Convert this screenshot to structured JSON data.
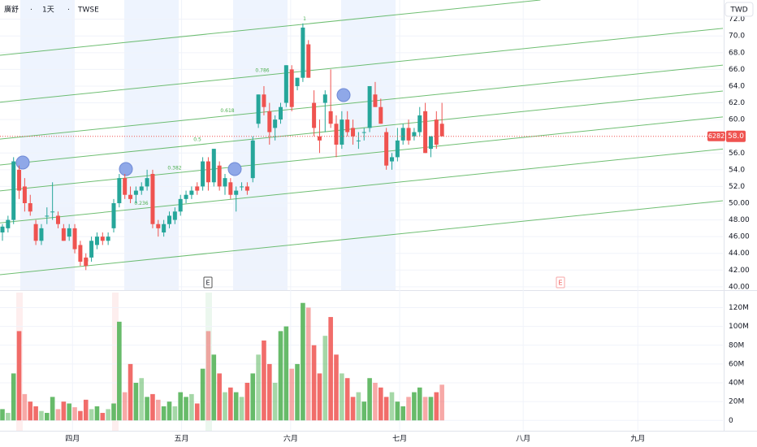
{
  "header": {
    "symbol": "廣舒",
    "interval": "1天",
    "exchange": "TWSE",
    "separator": "·"
  },
  "currency": "TWD",
  "chart_data": [
    {
      "type": "candlestick",
      "open": [
        46.5,
        47,
        48,
        54,
        52,
        50,
        47.5,
        45.5,
        48.5,
        49,
        48.5,
        47,
        46,
        47,
        45,
        43.5,
        43.5,
        45,
        46,
        45.5,
        47,
        50,
        53,
        51,
        51,
        51.5,
        52,
        53.5,
        47.5,
        46.5,
        47.5,
        48,
        49,
        50.5,
        51,
        52,
        52,
        55,
        52.5,
        54.5,
        52,
        52.5,
        51,
        52,
        52,
        53,
        59.5,
        63,
        61,
        59,
        60,
        62,
        66,
        64,
        65,
        69,
        62,
        58,
        62,
        61,
        59.5,
        57,
        60,
        59,
        57.5,
        58.5,
        59,
        63,
        61.5,
        58.5,
        55,
        55.5,
        57.5,
        59,
        58,
        58.5,
        61,
        56.5,
        60,
        59.5
      ],
      "high": [
        47.5,
        48.5,
        55.5,
        54.5,
        53,
        51,
        48,
        47.5,
        49.5,
        52.5,
        49,
        47.5,
        47.5,
        47.5,
        45.5,
        44,
        46,
        46.5,
        46.5,
        46.5,
        50.5,
        53.5,
        53.5,
        52,
        52,
        52.5,
        54,
        54,
        48,
        48,
        49,
        49.5,
        51,
        51.5,
        52,
        52.5,
        55.5,
        55.5,
        56.5,
        55,
        53.5,
        53,
        52,
        52.5,
        52.5,
        58,
        63,
        64,
        62,
        60.5,
        62,
        66.5,
        66.5,
        65,
        71.5,
        69.5,
        63.5,
        60,
        63.5,
        66,
        60.5,
        61,
        61,
        60,
        58.5,
        59,
        64,
        64.5,
        62.5,
        59,
        56,
        59,
        59.5,
        60,
        59,
        61.5,
        62,
        58,
        61,
        62
      ],
      "low": [
        45.5,
        46.5,
        47.5,
        50.5,
        49,
        48.5,
        45,
        45,
        47.5,
        48,
        47,
        45.5,
        45.5,
        44,
        42.5,
        42,
        43,
        44.5,
        45,
        45,
        46.5,
        49.5,
        50.5,
        50,
        50,
        51,
        51.5,
        47,
        46,
        46,
        47,
        47.5,
        48.5,
        50,
        50.5,
        51,
        51.5,
        51.5,
        52,
        51.5,
        51,
        50.5,
        49,
        51.5,
        51,
        52.5,
        59,
        60.5,
        57,
        57.5,
        59.5,
        61.5,
        61,
        63.5,
        64.5,
        65,
        58,
        56,
        58.5,
        59,
        55.5,
        56.5,
        58,
        57,
        56.5,
        57.5,
        58.5,
        61.5,
        59.5,
        54,
        54,
        55,
        57,
        57,
        57.5,
        58,
        56,
        55.5,
        56.5,
        58
      ],
      "close": [
        47.2,
        48,
        55,
        51.5,
        50,
        49,
        45.5,
        47,
        48.5,
        49,
        47.5,
        45.5,
        47,
        44.5,
        43,
        42.5,
        45.5,
        46,
        45.5,
        46,
        50,
        53,
        51,
        50.5,
        51.5,
        52,
        53,
        47.5,
        47,
        47.5,
        48.5,
        49,
        50.5,
        51,
        51.5,
        51.5,
        55,
        52.5,
        56.5,
        52,
        53,
        51,
        51.5,
        52,
        51.5,
        57.5,
        63,
        61.5,
        58.5,
        60,
        61.5,
        66.5,
        61.5,
        65,
        71,
        65,
        59,
        57.5,
        63,
        59.5,
        57,
        60,
        58.5,
        58,
        57.5,
        58.5,
        64,
        61.5,
        59.5,
        54.5,
        55.5,
        57.5,
        59,
        57.5,
        58.5,
        60.5,
        56,
        58,
        57,
        58
      ],
      "up_color": "#26a69a",
      "down_color": "#ef5350",
      "ylim": [
        39.6,
        74.3
      ],
      "yticks": [
        {
          "value": 40,
          "label": "40.00"
        },
        {
          "value": 42,
          "label": "42.00"
        },
        {
          "value": 44,
          "label": "44.00"
        },
        {
          "value": 46,
          "label": "46.00"
        },
        {
          "value": 48,
          "label": "48.00"
        },
        {
          "value": 50,
          "label": "50.00"
        },
        {
          "value": 52,
          "label": "52.0"
        },
        {
          "value": 54,
          "label": "54.0"
        },
        {
          "value": 56,
          "label": "56.0"
        },
        {
          "value": 60,
          "label": "60.0"
        },
        {
          "value": 62,
          "label": "62.0"
        },
        {
          "value": 64,
          "label": "64.0"
        },
        {
          "value": 66,
          "label": "66.0"
        },
        {
          "value": 68,
          "label": "68.0"
        },
        {
          "value": 70,
          "label": "70.0"
        },
        {
          "value": 72,
          "label": "72.0"
        }
      ],
      "xticks": [
        {
          "value": 12.6,
          "label": "四月"
        },
        {
          "value": 32.2,
          "label": "五月"
        },
        {
          "value": 51.8,
          "label": "六月"
        },
        {
          "value": 71.4,
          "label": "七月"
        },
        {
          "value": 93.6,
          "label": "八月"
        },
        {
          "value": 114.2,
          "label": "九月"
        }
      ],
      "fib_levels": [
        {
          "value": 0,
          "label": "0"
        },
        {
          "value": 0.236,
          "label": "0.236"
        },
        {
          "value": 0.382,
          "label": "0.382"
        },
        {
          "value": 0.5,
          "label": "0.5"
        },
        {
          "value": 0.618,
          "label": "0.618"
        },
        {
          "value": 0.786,
          "label": "0.786"
        },
        {
          "value": 1,
          "label": "1"
        }
      ],
      "fib_color": "#4caf50",
      "last_price": 58,
      "last_price_label": "58.0",
      "symbol_code": "6282",
      "events": [
        "E",
        "E"
      ]
    },
    {
      "type": "bar",
      "values": [
        12000000,
        8000000,
        50000000,
        95000000,
        28000000,
        20000000,
        15000000,
        10000000,
        8000000,
        25000000,
        12000000,
        20000000,
        18000000,
        14000000,
        10000000,
        22000000,
        12000000,
        15000000,
        8000000,
        12000000,
        18000000,
        105000000,
        30000000,
        60000000,
        40000000,
        45000000,
        25000000,
        28000000,
        22000000,
        15000000,
        20000000,
        15000000,
        30000000,
        25000000,
        28000000,
        18000000,
        55000000,
        95000000,
        70000000,
        50000000,
        30000000,
        35000000,
        30000000,
        25000000,
        40000000,
        50000000,
        70000000,
        85000000,
        60000000,
        40000000,
        95000000,
        100000000,
        55000000,
        60000000,
        125000000,
        120000000,
        80000000,
        50000000,
        90000000,
        110000000,
        70000000,
        50000000,
        45000000,
        25000000,
        30000000,
        20000000,
        45000000,
        40000000,
        35000000,
        25000000,
        30000000,
        20000000,
        15000000,
        25000000,
        30000000,
        35000000,
        25000000,
        25000000,
        30000000,
        38000000
      ],
      "up_color": "#4caf50",
      "down_color": "#ef5350",
      "ylim": [
        -11000000,
        136000000
      ],
      "yticks": [
        0,
        {
          "value": 20000000,
          "label": "20M"
        },
        {
          "value": 40000000,
          "label": "40M"
        },
        {
          "value": 60000000,
          "label": "60M"
        },
        {
          "value": 80000000,
          "label": "80M"
        },
        {
          "value": 100000000,
          "label": "100M"
        },
        {
          "value": 120000000,
          "label": "120M"
        }
      ]
    }
  ]
}
